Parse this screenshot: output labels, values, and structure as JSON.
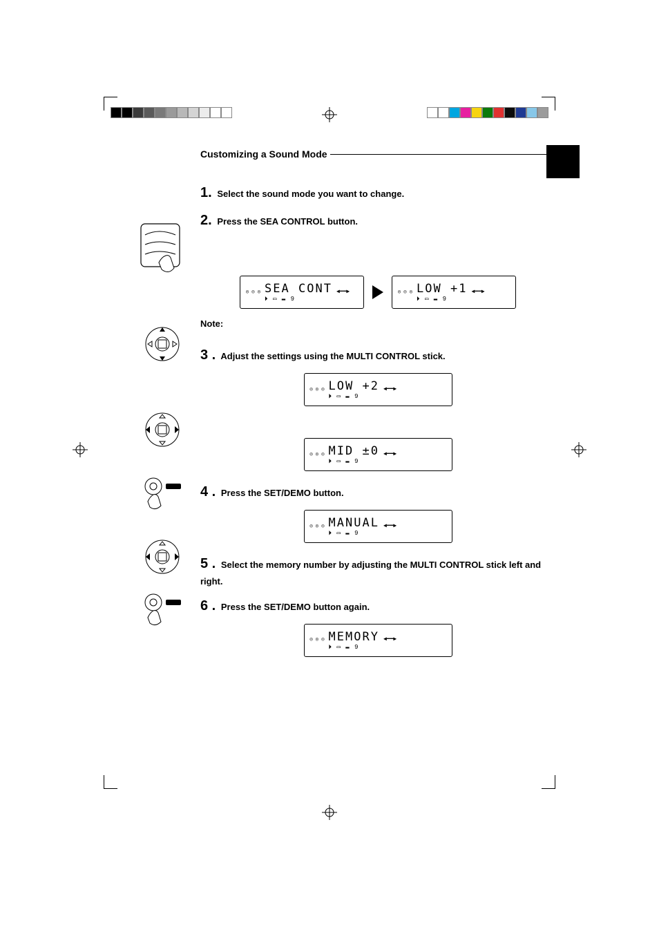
{
  "colorbar_left": [
    "#000000",
    "#000000",
    "#3b3b3b",
    "#5a5a5a",
    "#7a7a7a",
    "#9a9a9a",
    "#b8b8b8",
    "#d4d4d4",
    "#ececec",
    "#ffffff",
    "#ffffff"
  ],
  "colorbar_right": [
    "#9b9b9b",
    "#87c7e8",
    "#1f3a93",
    "#0b0b0b",
    "#e03131",
    "#0b7a0b",
    "#f7d40f",
    "#e71fa0",
    "#00a6e0",
    "#ffffff",
    "#ffffff"
  ],
  "section_title": "Customizing a Sound Mode",
  "steps": {
    "s1": {
      "num": "1.",
      "text": "Select the sound mode you want to change."
    },
    "s2": {
      "num": "2.",
      "text": "Press the SEA CONTROL button."
    },
    "s3": {
      "num": "3 .",
      "text": "Adjust the settings using the MULTI CONTROL stick."
    },
    "s4": {
      "num": "4 .",
      "text": "Press the SET/DEMO button."
    },
    "s5": {
      "num": "5 .",
      "text": "Select the memory number by adjusting the MULTI CONTROL stick left and right."
    },
    "s6": {
      "num": "6 .",
      "text": "Press the SET/DEMO button again."
    }
  },
  "note_label": "Note:",
  "lcd": {
    "sea_cont": "SEA CONT",
    "low1": "LOW  +1",
    "low2": "LOW  +2",
    "mid0": "MID  ±0",
    "manual": "MANUAL",
    "memory": "MEMORY",
    "icon_stack": "◎\n◎\n◎",
    "bars": "▯▯▯▯",
    "bottom": "⏵  ▭  ▬   9",
    "right_glyph": "◀━━▶"
  },
  "style": {
    "page_bg": "#ffffff",
    "text_color": "#000000",
    "title_fontsize": 14,
    "step_num_fontsize": 20,
    "step_text_fontsize": 13,
    "lcd_font": "monospace",
    "lcd_border": "#000000",
    "lcd_fontsize": 17
  }
}
